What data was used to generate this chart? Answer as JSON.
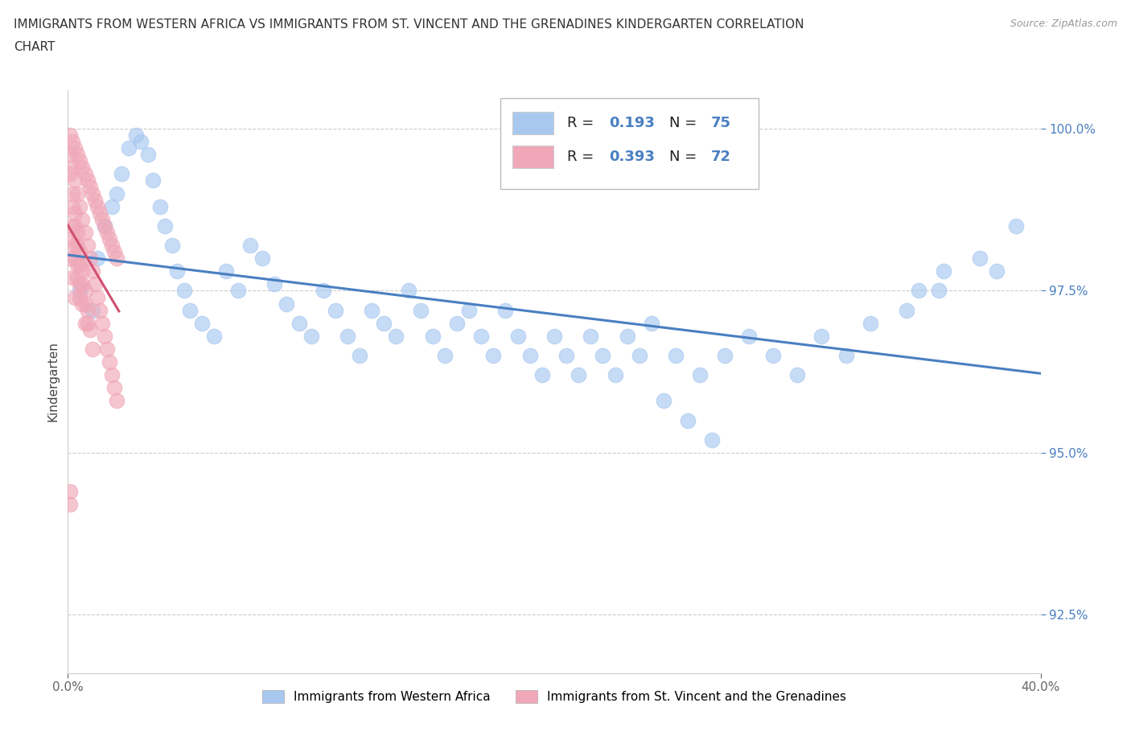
{
  "title_line1": "IMMIGRANTS FROM WESTERN AFRICA VS IMMIGRANTS FROM ST. VINCENT AND THE GRENADINES KINDERGARTEN CORRELATION",
  "title_line2": "CHART",
  "source": "Source: ZipAtlas.com",
  "ylabel": "Kindergarten",
  "xlim": [
    0.0,
    0.4
  ],
  "ylim": [
    0.916,
    1.006
  ],
  "ytick_values": [
    0.925,
    0.95,
    0.975,
    1.0
  ],
  "ytick_labels": [
    "92.5%",
    "95.0%",
    "97.5%",
    "100.0%"
  ],
  "xtick_values": [
    0.0,
    0.4
  ],
  "xtick_labels": [
    "0.0%",
    "40.0%"
  ],
  "blue_color": "#a8c8f0",
  "pink_color": "#f0a8b8",
  "blue_line_color": "#4a7fc1",
  "pink_line_color": "#d05070",
  "R_blue": 0.193,
  "N_blue": 75,
  "R_pink": 0.393,
  "N_pink": 72,
  "legend_label_blue": "Immigrants from Western Africa",
  "legend_label_pink": "Immigrants from St. Vincent and the Grenadines",
  "blue_scatter_x": [
    0.005,
    0.01,
    0.012,
    0.015,
    0.018,
    0.02,
    0.022,
    0.025,
    0.028,
    0.03,
    0.033,
    0.035,
    0.038,
    0.04,
    0.043,
    0.045,
    0.048,
    0.05,
    0.055,
    0.06,
    0.065,
    0.07,
    0.075,
    0.08,
    0.085,
    0.09,
    0.095,
    0.1,
    0.105,
    0.11,
    0.115,
    0.12,
    0.125,
    0.13,
    0.135,
    0.14,
    0.145,
    0.15,
    0.155,
    0.16,
    0.165,
    0.17,
    0.175,
    0.18,
    0.185,
    0.19,
    0.195,
    0.2,
    0.205,
    0.21,
    0.215,
    0.22,
    0.225,
    0.23,
    0.235,
    0.24,
    0.25,
    0.26,
    0.27,
    0.28,
    0.29,
    0.3,
    0.31,
    0.32,
    0.33,
    0.35,
    0.36,
    0.375,
    0.382,
    0.39,
    0.245,
    0.255,
    0.265,
    0.345,
    0.358
  ],
  "blue_scatter_y": [
    0.975,
    0.972,
    0.98,
    0.985,
    0.988,
    0.99,
    0.993,
    0.997,
    0.999,
    0.998,
    0.996,
    0.992,
    0.988,
    0.985,
    0.982,
    0.978,
    0.975,
    0.972,
    0.97,
    0.968,
    0.978,
    0.975,
    0.982,
    0.98,
    0.976,
    0.973,
    0.97,
    0.968,
    0.975,
    0.972,
    0.968,
    0.965,
    0.972,
    0.97,
    0.968,
    0.975,
    0.972,
    0.968,
    0.965,
    0.97,
    0.972,
    0.968,
    0.965,
    0.972,
    0.968,
    0.965,
    0.962,
    0.968,
    0.965,
    0.962,
    0.968,
    0.965,
    0.962,
    0.968,
    0.965,
    0.97,
    0.965,
    0.962,
    0.965,
    0.968,
    0.965,
    0.962,
    0.968,
    0.965,
    0.97,
    0.975,
    0.978,
    0.98,
    0.978,
    0.985,
    0.958,
    0.955,
    0.952,
    0.972,
    0.975
  ],
  "pink_scatter_x": [
    0.001,
    0.002,
    0.003,
    0.004,
    0.005,
    0.006,
    0.007,
    0.008,
    0.009,
    0.01,
    0.011,
    0.012,
    0.013,
    0.014,
    0.015,
    0.016,
    0.017,
    0.018,
    0.019,
    0.02,
    0.001,
    0.002,
    0.003,
    0.004,
    0.005,
    0.006,
    0.007,
    0.008,
    0.009,
    0.01,
    0.011,
    0.012,
    0.013,
    0.014,
    0.015,
    0.016,
    0.017,
    0.018,
    0.019,
    0.02,
    0.001,
    0.002,
    0.003,
    0.004,
    0.005,
    0.006,
    0.007,
    0.008,
    0.009,
    0.01,
    0.002,
    0.003,
    0.004,
    0.005,
    0.006,
    0.007,
    0.008,
    0.002,
    0.003,
    0.004,
    0.005,
    0.006,
    0.007,
    0.002,
    0.003,
    0.004,
    0.005,
    0.001,
    0.002,
    0.003,
    0.001,
    0.001
  ],
  "pink_scatter_y": [
    0.999,
    0.998,
    0.997,
    0.996,
    0.995,
    0.994,
    0.993,
    0.992,
    0.991,
    0.99,
    0.989,
    0.988,
    0.987,
    0.986,
    0.985,
    0.984,
    0.983,
    0.982,
    0.981,
    0.98,
    0.996,
    0.994,
    0.992,
    0.99,
    0.988,
    0.986,
    0.984,
    0.982,
    0.98,
    0.978,
    0.976,
    0.974,
    0.972,
    0.97,
    0.968,
    0.966,
    0.964,
    0.962,
    0.96,
    0.958,
    0.993,
    0.99,
    0.987,
    0.984,
    0.981,
    0.978,
    0.975,
    0.972,
    0.969,
    0.966,
    0.988,
    0.985,
    0.982,
    0.979,
    0.976,
    0.973,
    0.97,
    0.985,
    0.982,
    0.979,
    0.976,
    0.973,
    0.97,
    0.983,
    0.98,
    0.977,
    0.974,
    0.98,
    0.977,
    0.974,
    0.944,
    0.942
  ]
}
